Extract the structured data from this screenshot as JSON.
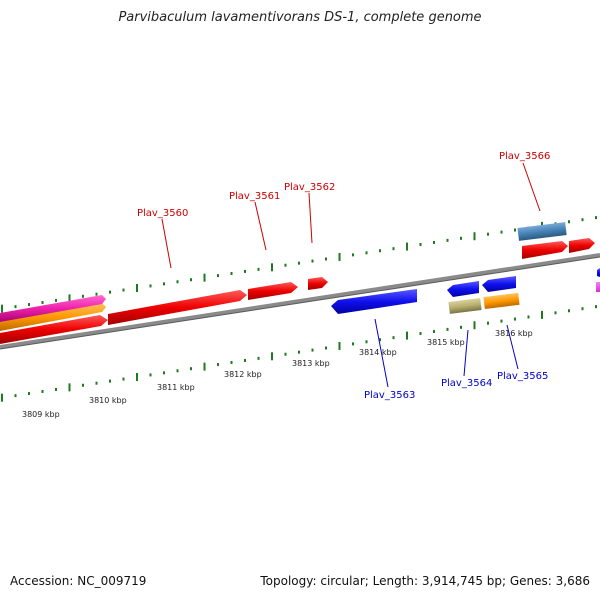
{
  "title": "Parvibaculum lavamentivorans DS-1, complete genome",
  "footer": {
    "accession": "Accession: NC_009719",
    "stats": "Topology: circular; Length: 3,914,745 bp; Genes: 3,686"
  },
  "colors": {
    "backbone": "#8a8a8a",
    "tick": "#1f7a1f",
    "forward_label": "#cc0000",
    "reverse_label": "#0000cc"
  },
  "kbp_labels": [
    "3809 kbp",
    "3810 kbp",
    "3811 kbp",
    "3812 kbp",
    "3813 kbp",
    "3814 kbp",
    "3815 kbp",
    "3816 kbp"
  ],
  "forward_gene_labels": [
    "Plav_3560",
    "Plav_3561",
    "Plav_3562",
    "Plav_3566"
  ],
  "reverse_gene_labels": [
    "Plav_3563",
    "Plav_3564",
    "Plav_3565"
  ]
}
